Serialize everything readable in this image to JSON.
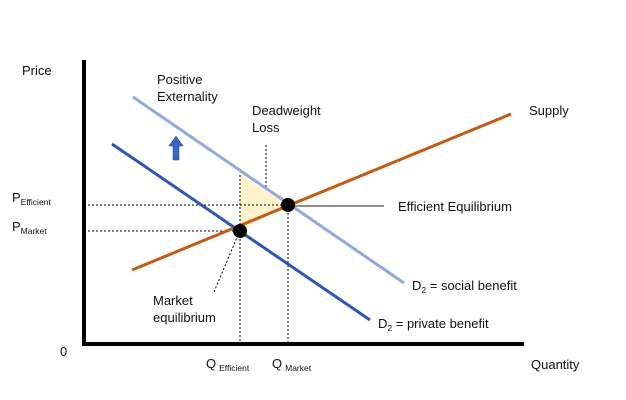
{
  "axes": {
    "y_label": "Price",
    "x_label": "Quantity",
    "origin": "0"
  },
  "y_ticks": {
    "p_efficient": {
      "main": "P",
      "sub": "Efficient"
    },
    "p_market": {
      "main": "P",
      "sub": "Market"
    }
  },
  "x_ticks": {
    "q_efficient": {
      "main": "Q",
      "sub": "Efficient"
    },
    "q_market": {
      "main": "Q",
      "sub": "Market"
    }
  },
  "annotations": {
    "positive_externality": [
      "Positive",
      "Externality"
    ],
    "deadweight_loss": [
      "Deadweight",
      "Loss"
    ],
    "supply": "Supply",
    "efficient_equilibrium": "Efficient Equilibrium",
    "market_equilibrium": [
      "Market",
      "equilibrium"
    ],
    "d2_social": {
      "main": "D",
      "sub": "2",
      "rest": " = social benefit"
    },
    "d2_private": {
      "main": "D",
      "sub": "2",
      "rest": " = private benefit"
    }
  },
  "colors": {
    "supply_line": "#c55a11",
    "social_benefit_line": "#8faadc",
    "private_benefit_line": "#2f55b8",
    "deadweight_fill": "#fff2cc",
    "arrow": "#3a66c4",
    "axis": "#000000"
  },
  "icons": {
    "shift_arrow": "up-arrow-icon"
  }
}
